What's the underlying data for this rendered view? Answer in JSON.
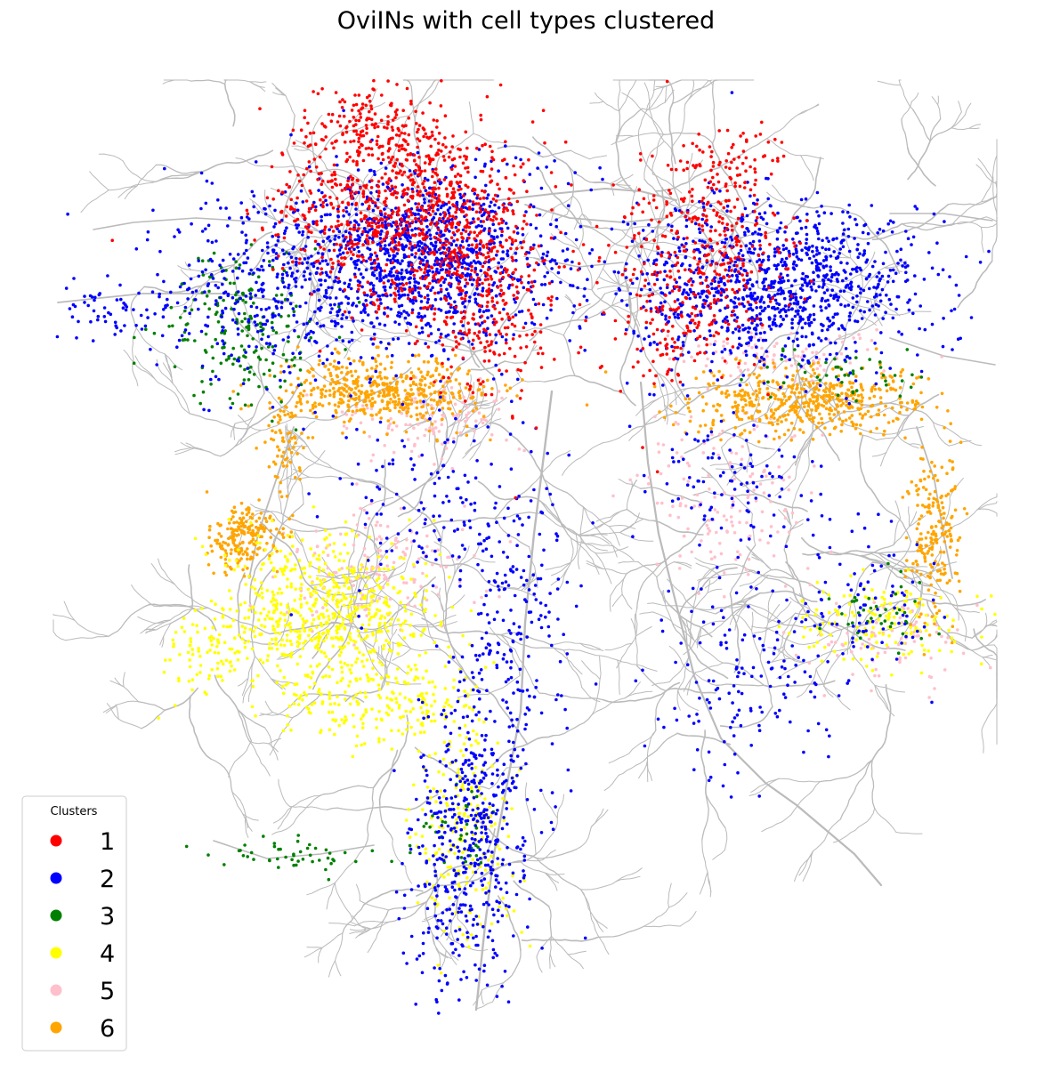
{
  "chart_data": {
    "type": "scatter",
    "title": "OviINs with cell types clustered",
    "xlabel": "",
    "ylabel": "",
    "axes_visible": false,
    "grid": false,
    "legend": {
      "title": "Clusters",
      "position": "bottom-left"
    },
    "background_color": "#bbbbbb",
    "series": [
      {
        "name": "1",
        "color": "#ff0000",
        "density": "high in upper lobes"
      },
      {
        "name": "2",
        "color": "#0000ff",
        "density": "high throughout upper lobes and central stalk"
      },
      {
        "name": "3",
        "color": "#008000",
        "density": "sparse, left side"
      },
      {
        "name": "4",
        "color": "#ffff00",
        "density": "lower left lobe and stalk"
      },
      {
        "name": "5",
        "color": "#ffc0cb",
        "density": "scattered mid regions"
      },
      {
        "name": "6",
        "color": "#ffa500",
        "density": "band below upper lobes"
      }
    ]
  }
}
